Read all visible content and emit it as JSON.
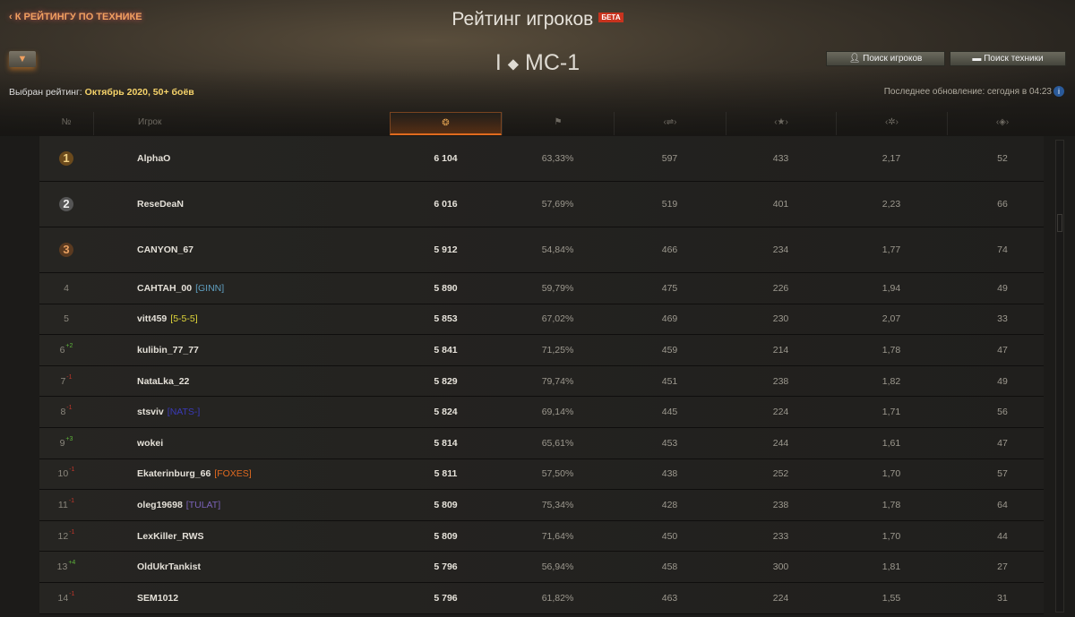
{
  "header": {
    "back_label": "К РЕЙТИНГУ ПО ТЕХНИКЕ",
    "title": "Рейтинг игроков",
    "beta": "БЕТА",
    "tier": "I",
    "vehicle": "МС-1",
    "selected_prefix": "Выбран рейтинг:",
    "selected_value": "Октябрь 2020, 50+ боёв",
    "search_players": "Поиск игроков",
    "search_vehicles": "Поиск техники",
    "last_update": "Последнее обновление: сегодня в 04:23"
  },
  "columns": {
    "rank": "№",
    "player": "Игрок",
    "icons": [
      "rating-laurel-icon",
      "win-flag-icon",
      "damage-icon",
      "experience-star-icon",
      "frags-icon",
      "spotting-icon"
    ]
  },
  "rows": [
    {
      "rank": "1",
      "name": "AlphaO",
      "clan": "",
      "clan_color": "",
      "delta": "",
      "rating": "6 104",
      "wr": "63,33%",
      "dmg": "597",
      "xp": "433",
      "frags": "2,17",
      "spot": "52"
    },
    {
      "rank": "2",
      "name": "ReseDeaN",
      "clan": "",
      "clan_color": "",
      "delta": "",
      "rating": "6 016",
      "wr": "57,69%",
      "dmg": "519",
      "xp": "401",
      "frags": "2,23",
      "spot": "66"
    },
    {
      "rank": "3",
      "name": "CANYON_67",
      "clan": "",
      "clan_color": "",
      "delta": "",
      "rating": "5 912",
      "wr": "54,84%",
      "dmg": "466",
      "xp": "234",
      "frags": "1,77",
      "spot": "74"
    },
    {
      "rank": "4",
      "name": "CAHTAH_00",
      "clan": "[GINN]",
      "clan_color": "#5f9fc0",
      "delta": "",
      "rating": "5 890",
      "wr": "59,79%",
      "dmg": "475",
      "xp": "226",
      "frags": "1,94",
      "spot": "49"
    },
    {
      "rank": "5",
      "name": "vitt459",
      "clan": "[5-5-5]",
      "clan_color": "#e0d63a",
      "delta": "",
      "rating": "5 853",
      "wr": "67,02%",
      "dmg": "469",
      "xp": "230",
      "frags": "2,07",
      "spot": "33"
    },
    {
      "rank": "6",
      "name": "kulibin_77_77",
      "clan": "",
      "clan_color": "",
      "delta": "+2",
      "rating": "5 841",
      "wr": "71,25%",
      "dmg": "459",
      "xp": "214",
      "frags": "1,78",
      "spot": "47"
    },
    {
      "rank": "7",
      "name": "NataLka_22",
      "clan": "",
      "clan_color": "",
      "delta": "-1",
      "rating": "5 829",
      "wr": "79,74%",
      "dmg": "451",
      "xp": "238",
      "frags": "1,82",
      "spot": "49"
    },
    {
      "rank": "8",
      "name": "stsviv",
      "clan": "[NATS-]",
      "clan_color": "#3a3ab8",
      "delta": "-1",
      "rating": "5 824",
      "wr": "69,14%",
      "dmg": "445",
      "xp": "224",
      "frags": "1,71",
      "spot": "56"
    },
    {
      "rank": "9",
      "name": "wokei",
      "clan": "",
      "clan_color": "",
      "delta": "+3",
      "rating": "5 814",
      "wr": "65,61%",
      "dmg": "453",
      "xp": "244",
      "frags": "1,61",
      "spot": "47"
    },
    {
      "rank": "10",
      "name": "Ekaterinburg_66",
      "clan": "[FOXES]",
      "clan_color": "#e06a20",
      "delta": "-1",
      "rating": "5 811",
      "wr": "57,50%",
      "dmg": "438",
      "xp": "252",
      "frags": "1,70",
      "spot": "57"
    },
    {
      "rank": "11",
      "name": "oleg19698",
      "clan": "[TULAT]",
      "clan_color": "#7a62b8",
      "delta": "-1",
      "rating": "5 809",
      "wr": "75,34%",
      "dmg": "428",
      "xp": "238",
      "frags": "1,78",
      "spot": "64"
    },
    {
      "rank": "12",
      "name": "LexKiller_RWS",
      "clan": "",
      "clan_color": "",
      "delta": "-1",
      "rating": "5 809",
      "wr": "71,64%",
      "dmg": "450",
      "xp": "233",
      "frags": "1,70",
      "spot": "44"
    },
    {
      "rank": "13",
      "name": "OldUkrTankist",
      "clan": "",
      "clan_color": "",
      "delta": "+4",
      "rating": "5 796",
      "wr": "56,94%",
      "dmg": "458",
      "xp": "300",
      "frags": "1,81",
      "spot": "27"
    },
    {
      "rank": "14",
      "name": "SEM1012",
      "clan": "",
      "clan_color": "",
      "delta": "-1",
      "rating": "5 796",
      "wr": "61,82%",
      "dmg": "463",
      "xp": "224",
      "frags": "1,55",
      "spot": "31"
    }
  ]
}
